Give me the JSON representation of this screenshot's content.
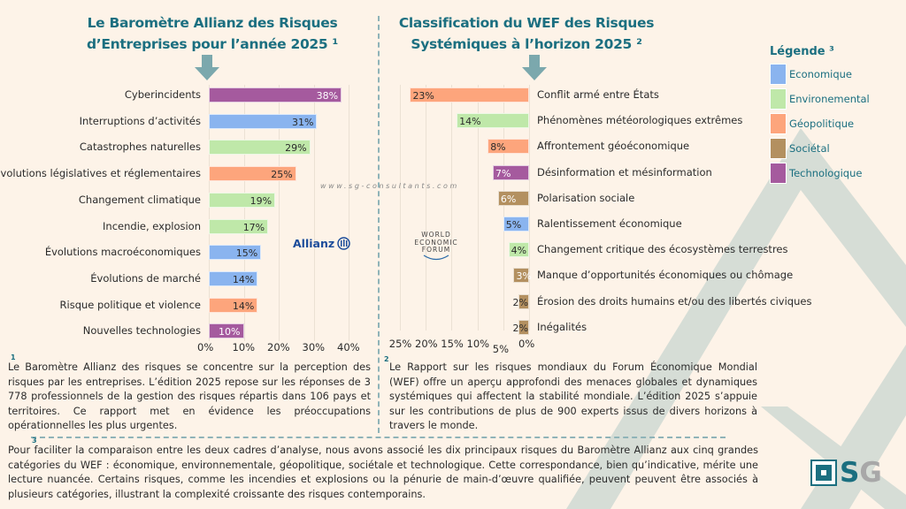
{
  "colors": {
    "Economique": "#8ab4ef",
    "Environemental": "#bfe8a9",
    "Geopolitique": "#fda57c",
    "Societal": "#b39060",
    "Technologique": "#a55a9e",
    "accent": "#1b6f80"
  },
  "left_title_line1": "Le Baromètre Allianz des Risques",
  "left_title_line2": "d’Entreprises pour l’année 2025 ¹",
  "right_title_line1": "Classification du WEF des Risques",
  "right_title_line2": "Systémiques à l’horizon 2025 ²",
  "watermark": "www.sg-consultants.com",
  "allianz_logo": "Allianz",
  "wef_logo": [
    "WORLD",
    "ECONOMIC",
    "FORUM"
  ],
  "legend": {
    "title": "Légende ³",
    "items": [
      {
        "label": "Economique",
        "cat": "Economique"
      },
      {
        "label": "Environemental",
        "cat": "Environemental"
      },
      {
        "label": "Géopolitique",
        "cat": "Geopolitique"
      },
      {
        "label": "Sociétal",
        "cat": "Societal"
      },
      {
        "label": "Technologique",
        "cat": "Technologique"
      }
    ]
  },
  "chart_data": [
    {
      "type": "bar",
      "orientation": "horizontal",
      "title": "Le Baromètre Allianz des Risques d’Entreprises pour l’année 2025",
      "xlim": [
        0,
        40
      ],
      "ticks": [
        "0%",
        "10%",
        "20%",
        "30%",
        "40%"
      ],
      "tick_values": [
        0,
        10,
        20,
        30,
        40
      ],
      "categories": [
        "Cyberincidents",
        "Interruptions d’activités",
        "Catastrophes naturelles",
        "Évolutions législatives et réglementaires",
        "Changement climatique",
        "Incendie, explosion",
        "Évolutions macroéconomiques",
        "Évolutions de marché",
        "Risque politique et violence",
        "Nouvelles technologies"
      ],
      "values": [
        38,
        31,
        29,
        25,
        19,
        17,
        15,
        14,
        14,
        10
      ],
      "labels": [
        "38%",
        "31%",
        "29%",
        "25%",
        "19%",
        "17%",
        "15%",
        "14%",
        "14%",
        "10%"
      ],
      "cats": [
        "Technologique",
        "Economique",
        "Environemental",
        "Geopolitique",
        "Environemental",
        "Environemental",
        "Economique",
        "Economique",
        "Geopolitique",
        "Technologique"
      ]
    },
    {
      "type": "bar",
      "orientation": "horizontal-reversed",
      "title": "Classification du WEF des Risques Systémiques à l’horizon 2025",
      "xlim": [
        0,
        25
      ],
      "ticks": [
        "25%",
        "20%",
        "15%",
        "10%",
        "5%",
        "0%"
      ],
      "tick_values": [
        25,
        20,
        15,
        10,
        5,
        0
      ],
      "categories": [
        "Conflit armé entre États",
        "Phénomènes météorologiques extrêmes",
        "Affrontement géoéconomique",
        "Désinformation et mésinformation",
        "Polarisation sociale",
        "Ralentissement économique",
        "Changement critique des écosystèmes terrestres",
        "Manque d’opportunités économiques ou chômage",
        "Érosion des droits humains et/ou des libertés civiques",
        "Inégalités"
      ],
      "values": [
        23,
        14,
        8,
        7,
        6,
        5,
        4,
        3,
        2,
        2
      ],
      "labels": [
        "23%",
        "14%",
        "8%",
        "7%",
        "6%",
        "5%",
        "4%",
        "3%",
        "2%",
        "2%"
      ],
      "cats": [
        "Geopolitique",
        "Environemental",
        "Geopolitique",
        "Technologique",
        "Societal",
        "Economique",
        "Environemental",
        "Societal",
        "Societal",
        "Societal"
      ]
    }
  ],
  "notes": {
    "n1_mark": "1",
    "n1": "Le Baromètre Allianz des risques se concentre sur la perception des risques par les entreprises. L’édition 2025 repose sur les réponses de 3 778 professionnels de la gestion des risques répartis dans 106 pays et territoires. Ce rapport met en évidence les préoccupations opérationnelles les plus urgentes.",
    "n2_mark": "2",
    "n2": "Le Rapport sur les risques mondiaux du Forum Économique Mondial (WEF) offre un aperçu approfondi des menaces globales et dynamiques systémiques qui affectent la stabilité mondiale. L’édition 2025 s’appuie sur les contributions de plus de 900 experts issus de divers horizons à travers le monde.",
    "n3_mark": "3",
    "n3": "Pour faciliter la comparaison entre les deux cadres d’analyse, nous avons associé les dix principaux risques du Baromètre Allianz aux cinq grandes catégories du WEF : économique, environnementale, géopolitique, sociétale et technologique. Cette correspondance, bien qu’indicative, mérite une lecture nuancée. Certains risques, comme les incendies et explosions ou la pénurie de main-d’œuvre qualifiée, peuvent peuvent être associés à plusieurs catégories, illustrant la complexité croissante des risques contemporains."
  },
  "logo": {
    "text_s": "S",
    "text_g": "G"
  }
}
